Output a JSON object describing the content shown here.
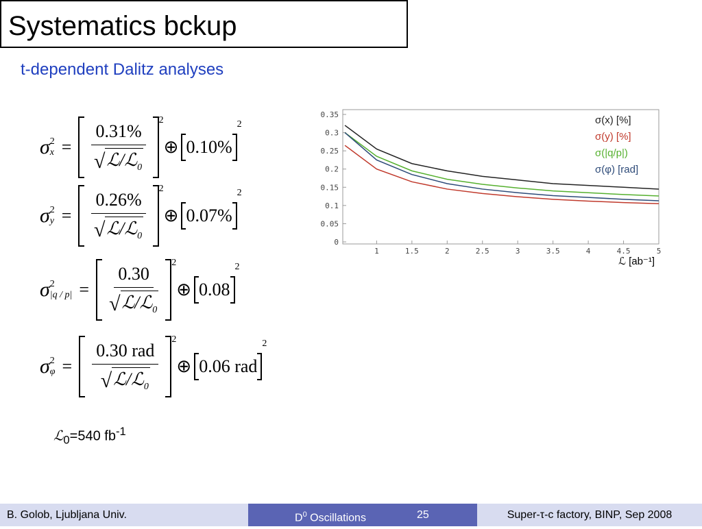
{
  "header": {
    "title": "Systematics bckup",
    "subtitle": "t-dependent Dalitz analyses"
  },
  "operators": {
    "equals": "=",
    "oplus": "⊕",
    "power": "2",
    "over": "/",
    "lumi": "ℒ",
    "zero": "0"
  },
  "equations": [
    {
      "symbol": "σ",
      "sub": "x",
      "num": "0.31%",
      "tail": "0.10%"
    },
    {
      "symbol": "σ",
      "sub": "y",
      "num": "0.26%",
      "tail": "0.07%"
    },
    {
      "symbol": "σ",
      "sub": "|q / p|",
      "num": "0.30",
      "tail": "0.08"
    },
    {
      "symbol": "σ",
      "sub": "φ",
      "num": "0.30 rad",
      "tail": "0.06 rad"
    }
  ],
  "constant": {
    "symbol": "ℒ",
    "sub": "0",
    "text": "=540 fb",
    "sup": "-1"
  },
  "chart_data": {
    "type": "line",
    "xlabel": "ℒ [ab⁻¹]",
    "x": [
      0.55,
      1,
      1.5,
      2,
      2.5,
      3,
      3.5,
      4,
      4.5,
      5
    ],
    "xlim": [
      0.52,
      5
    ],
    "xticks": [
      1,
      1.5,
      2,
      2.5,
      3,
      3.5,
      4,
      4.5,
      5
    ],
    "ylim": [
      0,
      0.35
    ],
    "yticks": [
      0,
      0.05,
      0.1,
      0.15,
      0.2,
      0.25,
      0.3,
      0.35
    ],
    "series": [
      {
        "name": "σ(x) [%]",
        "color": "#222222",
        "values": [
          0.32,
          0.255,
          0.215,
          0.195,
          0.18,
          0.17,
          0.16,
          0.155,
          0.15,
          0.145
        ]
      },
      {
        "name": "σ(y) [%]",
        "color": "#c0392b",
        "values": [
          0.265,
          0.2,
          0.165,
          0.145,
          0.133,
          0.124,
          0.117,
          0.112,
          0.108,
          0.105
        ]
      },
      {
        "name": "σ(|q/p|)",
        "color": "#55b02e",
        "values": [
          0.3,
          0.235,
          0.195,
          0.172,
          0.158,
          0.148,
          0.14,
          0.135,
          0.13,
          0.126
        ]
      },
      {
        "name": "σ(φ) [rad]",
        "color": "#2d4a78",
        "values": [
          0.3,
          0.225,
          0.185,
          0.16,
          0.145,
          0.135,
          0.127,
          0.122,
          0.117,
          0.113
        ]
      }
    ]
  },
  "footer": {
    "left": "B. Golob, Ljubljana Univ.",
    "middle": "D",
    "middle_sup": "0",
    "middle_text": " Oscillations",
    "page": "25",
    "right": "Super-τ-c factory, BINP, Sep 2008"
  }
}
